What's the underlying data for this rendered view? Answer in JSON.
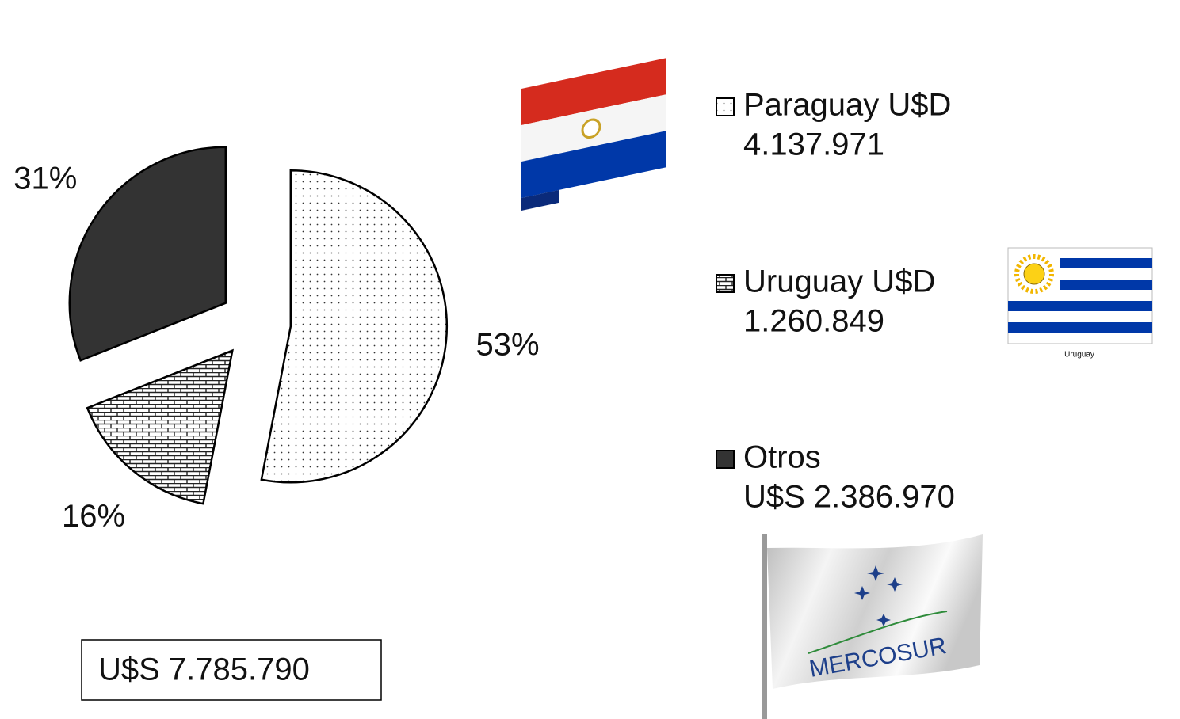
{
  "chart_data": {
    "type": "pie",
    "categories": [
      "Paraguay U$D",
      "Uruguay U$D",
      "Otros"
    ],
    "amounts": [
      "4.137.971",
      "1.260.849",
      "U$S 2.386.970"
    ],
    "values": [
      53,
      16,
      31
    ],
    "value_labels": [
      "53%",
      "16%",
      "31%"
    ],
    "patterns": [
      "dots",
      "bricks",
      "solid"
    ],
    "colors": [
      "#ffffff",
      "#ffffff",
      "#333333"
    ],
    "total": "U$S 7.785.790",
    "flag_caption": "Uruguay",
    "flag_text": "MERCOSUR"
  }
}
